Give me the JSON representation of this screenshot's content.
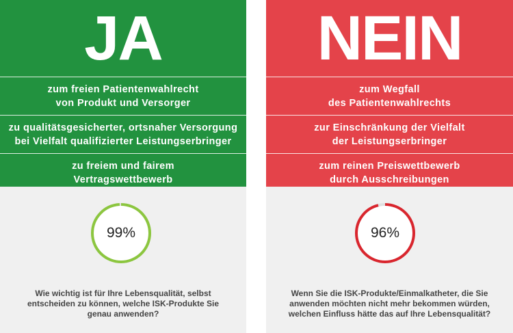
{
  "left": {
    "title": "JA",
    "color": "#22923f",
    "rows": [
      "zum freien Patientenwahlrecht\nvon Produkt und Versorger",
      "zu qualitätsgesicherter, ortsnaher Versorgung\nbei Vielfalt qualifizierter Leistungserbringer",
      "zu freiem und fairem\nVertragswettbewerb"
    ],
    "percent_label": "99%",
    "percent_value": 99,
    "ring_color": "#8cc63f",
    "question": "Wie wichtig ist für Ihre Lebensqualität, selbst\nentscheiden zu können, welche ISK-Produkte Sie\ngenau anwenden?"
  },
  "right": {
    "title": "NEIN",
    "color": "#e4434a",
    "rows": [
      "zum Wegfall\ndes Patientenwahlrechts",
      "zur Einschränkung der Vielfalt\nder Leistungserbringer",
      "zum reinen Preiswettbewerb\ndurch Ausschreibungen"
    ],
    "percent_label": "96%",
    "percent_value": 96,
    "ring_color": "#d9262e",
    "question": "Wenn Sie die ISK-Produkte/Einmalkatheter, die Sie\nanwenden möchten nicht mehr bekommen würden,\nwelchen Einfluss hätte das auf Ihre Lebensqualität?"
  }
}
